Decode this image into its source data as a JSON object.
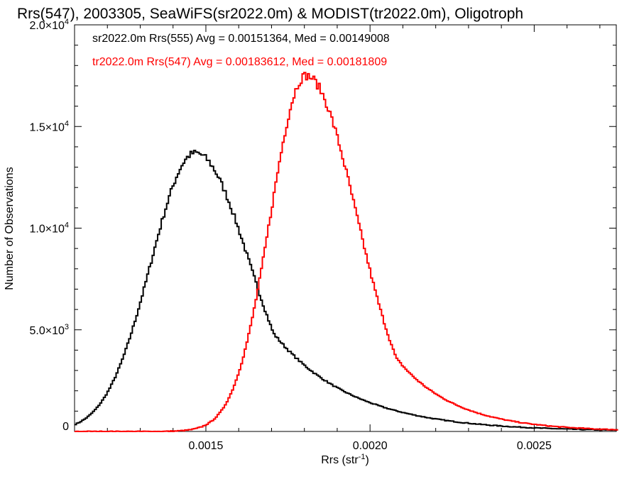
{
  "chart_data": {
    "type": "histogram",
    "title": "Rrs(547), 2003305, SeaWiFS(sr2022.0m) & MODIST(tr2022.0m), Oligotroph",
    "xlabel": "Rrs (str",
    "xlabel_sup": "-1",
    "xlabel_suffix": ")",
    "ylabel": "Number of Observations",
    "xlim": [
      0.0011,
      0.00275
    ],
    "ylim": [
      0,
      20000
    ],
    "x_ticks": [
      {
        "value": 0.0015,
        "label": "0.0015"
      },
      {
        "value": 0.002,
        "label": "0.0020"
      },
      {
        "value": 0.0025,
        "label": "0.0025"
      }
    ],
    "y_ticks": [
      {
        "value": 0,
        "label": "0",
        "sup": ""
      },
      {
        "value": 5000,
        "label": "5.0×10",
        "sup": "3"
      },
      {
        "value": 10000,
        "label": "1.0×10",
        "sup": "4"
      },
      {
        "value": 15000,
        "label": "1.5×10",
        "sup": "4"
      },
      {
        "value": 20000,
        "label": "2.0×10",
        "sup": "4"
      }
    ],
    "series": [
      {
        "name": "sr2022.0m Rrs(555)",
        "color": "#000000",
        "peak_x": 0.001465,
        "peak_y": 13700,
        "sigma_left": 0.000135,
        "sigma_right": 0.000165,
        "tail_right": 0.00024
      },
      {
        "name": "tr2022.0m Rrs(547)",
        "color": "#ff0000",
        "peak_x": 0.001802,
        "peak_y": 17500,
        "sigma_left": 0.000108,
        "sigma_right": 0.000155,
        "tail_right": 0.00018
      }
    ],
    "legend": [
      {
        "text": "sr2022.0m Rrs(555) Avg = 0.00151364, Med = 0.00149008",
        "color": "#000000"
      },
      {
        "text": "tr2022.0m Rrs(547) Avg = 0.00183612, Med = 0.00181809",
        "color": "#ff0000"
      }
    ],
    "legend_position": "top-left"
  }
}
